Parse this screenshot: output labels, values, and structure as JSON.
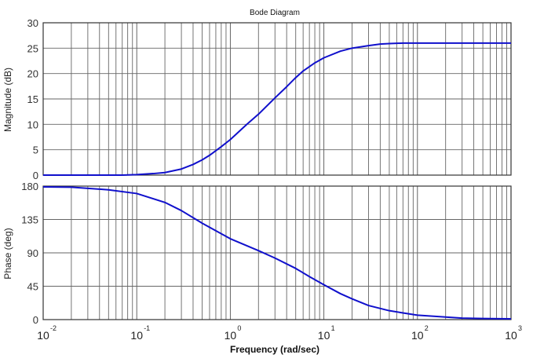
{
  "chart_data": {
    "type": "line",
    "title": "Bode Diagram",
    "xlabel": "Frequency (rad/sec)",
    "xscale": "log",
    "xlim": [
      0.01,
      1000
    ],
    "grid": true,
    "line_color": "#1010cc",
    "xtick_labels": [
      {
        "base": "10",
        "exp": "-2"
      },
      {
        "base": "10",
        "exp": "-1"
      },
      {
        "base": "10",
        "exp": "0"
      },
      {
        "base": "10",
        "exp": "1"
      },
      {
        "base": "10",
        "exp": "2"
      },
      {
        "base": "10",
        "exp": "3"
      }
    ],
    "panels": [
      {
        "name": "magnitude",
        "ylabel": "Magnitude (dB)",
        "ylim": [
          0,
          30
        ],
        "yticks": [
          0,
          5,
          10,
          15,
          20,
          25,
          30
        ],
        "series": [
          {
            "x": [
              0.01,
              0.03,
              0.07,
              0.1,
              0.15,
              0.2,
              0.3,
              0.4,
              0.5,
              0.6,
              0.8,
              1,
              1.5,
              2,
              3,
              4,
              5,
              6,
              8,
              10,
              15,
              20,
              30,
              40,
              50,
              70,
              100,
              200,
              500,
              1000
            ],
            "y": [
              0,
              0,
              0,
              0.1,
              0.3,
              0.5,
              1.2,
              2.1,
              3,
              3.9,
              5.6,
              7,
              10,
              12,
              15.2,
              17.4,
              19.2,
              20.5,
              22.1,
              23.1,
              24.4,
              25,
              25.5,
              25.8,
              25.9,
              26,
              26,
              26,
              26,
              26
            ]
          }
        ]
      },
      {
        "name": "phase",
        "ylabel": "Phase (deg)",
        "ylim": [
          0,
          180
        ],
        "yticks": [
          0,
          45,
          90,
          135,
          180
        ],
        "series": [
          {
            "x": [
              0.01,
              0.02,
              0.05,
              0.1,
              0.2,
              0.3,
              0.5,
              1,
              2,
              3,
              5,
              7,
              10,
              15,
              20,
              30,
              50,
              70,
              100,
              200,
              300,
              500,
              1000
            ],
            "y": [
              179,
              178.5,
              175,
              170,
              158,
              147,
              130,
              109,
              93,
              83,
              69,
              58,
              47,
              35,
              28,
              19,
              12,
              9,
              6,
              3.5,
              2,
              1.5,
              1
            ]
          }
        ]
      }
    ]
  }
}
